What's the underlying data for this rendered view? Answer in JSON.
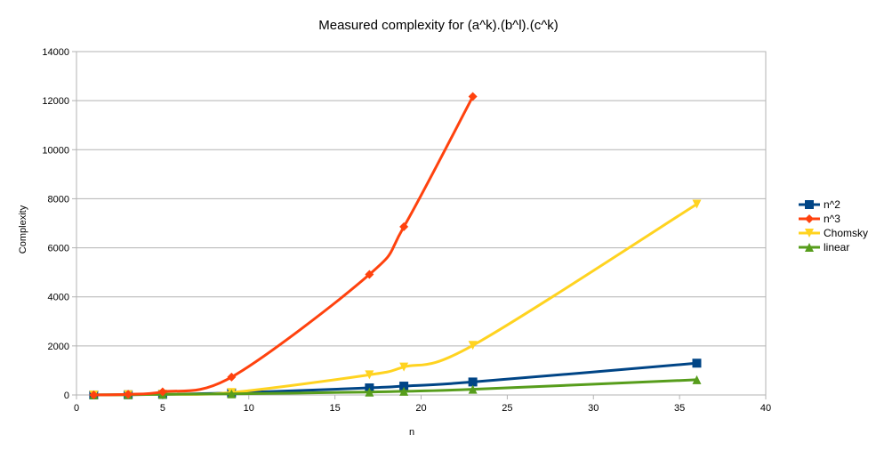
{
  "chart_data": {
    "type": "line",
    "title": "Measured complexity for (a^k).(b^l).(c^k)",
    "xlabel": "n",
    "ylabel": "Complexity",
    "xlim": [
      0,
      40
    ],
    "ylim": [
      0,
      14000
    ],
    "xticks": [
      0,
      5,
      10,
      15,
      20,
      25,
      30,
      35,
      40
    ],
    "yticks": [
      0,
      2000,
      4000,
      6000,
      8000,
      10000,
      12000,
      14000
    ],
    "grid": "horizontal",
    "legend": "right",
    "series": [
      {
        "name": "n^2",
        "color": "#004586",
        "marker": "square",
        "x": [
          1,
          3,
          5,
          9,
          17,
          19,
          23,
          36
        ],
        "y": [
          1,
          9,
          25,
          81,
          289,
          361,
          529,
          1296
        ]
      },
      {
        "name": "n^3",
        "color": "#ff420e",
        "marker": "diamond",
        "x": [
          1,
          3,
          5,
          9,
          17,
          19,
          23
        ],
        "y": [
          1,
          27,
          125,
          729,
          4913,
          6859,
          12167
        ]
      },
      {
        "name": "Chomsky",
        "color": "#ffd320",
        "marker": "triangle-down",
        "x": [
          1,
          3,
          5,
          9,
          17,
          19,
          23,
          36
        ],
        "y": [
          0,
          10,
          30,
          100,
          820,
          1140,
          2020,
          7780
        ]
      },
      {
        "name": "linear",
        "color": "#579d1c",
        "marker": "triangle-up",
        "x": [
          1,
          3,
          5,
          9,
          17,
          19,
          23,
          36
        ],
        "y": [
          5,
          15,
          25,
          45,
          120,
          150,
          230,
          620
        ]
      }
    ]
  }
}
